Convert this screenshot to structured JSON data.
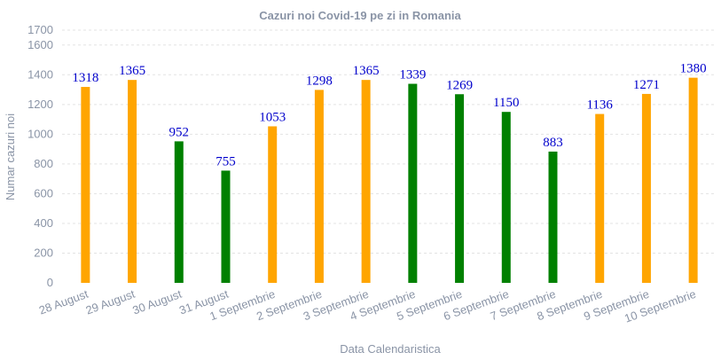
{
  "chart_data": {
    "type": "bar",
    "title": "Cazuri noi Covid-19 pe zi in Romania",
    "xlabel": "Data Calendaristica",
    "ylabel": "Numar cazuri noi",
    "ylim": [
      0,
      1700
    ],
    "yticks": [
      0,
      200,
      400,
      600,
      800,
      1000,
      1200,
      1400,
      1600,
      1700
    ],
    "categories": [
      "28 August",
      "29 August",
      "30 August",
      "31 August",
      "1 Septembrie",
      "2 Septembrie",
      "3 Septembrie",
      "4 Septembrie",
      "5 Septembrie",
      "6 Septembrie",
      "7 Septembrie",
      "8 Septembrie",
      "9 Septembrie",
      "10 Septembrie"
    ],
    "values": [
      1318,
      1365,
      952,
      755,
      1053,
      1298,
      1365,
      1339,
      1269,
      1150,
      883,
      1136,
      1271,
      1380
    ],
    "bar_colors": [
      "#ffa500",
      "#ffa500",
      "#008000",
      "#008000",
      "#ffa500",
      "#ffa500",
      "#ffa500",
      "#008000",
      "#008000",
      "#008000",
      "#008000",
      "#ffa500",
      "#ffa500",
      "#ffa500"
    ],
    "grid": true,
    "data_label_color": "#0000cc"
  }
}
